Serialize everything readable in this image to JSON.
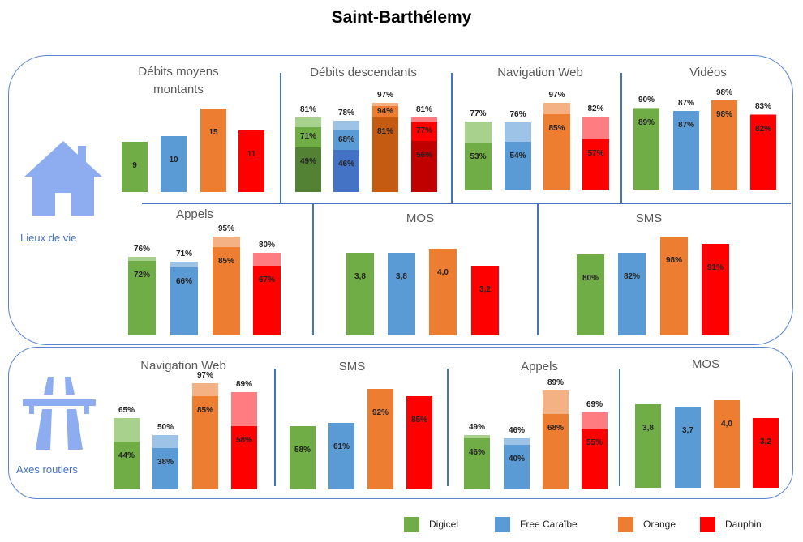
{
  "title": "Saint-Barthélemy",
  "groups": {
    "top": "Lieux de vie",
    "bottom": "Axes routiers"
  },
  "icons": {
    "top": "house-icon",
    "bottom": "highway-icon"
  },
  "legend": [
    {
      "label": "Digicel",
      "color": "#70AD47"
    },
    {
      "label": "Free Caraïbe",
      "color": "#5B9BD5"
    },
    {
      "label": "Orange",
      "color": "#ED7D31"
    },
    {
      "label": "Dauphin",
      "color": "#FF0000"
    }
  ],
  "palette": {
    "Digicel": {
      "light": "#A9D18E",
      "main": "#70AD47",
      "dark": "#548235"
    },
    "Free Caraïbe": {
      "light": "#9DC3E6",
      "main": "#5B9BD5",
      "dark": "#4472C4"
    },
    "Orange": {
      "light": "#F4B183",
      "main": "#ED7D31",
      "dark": "#C55A11"
    },
    "Dauphin": {
      "light": "#FF7C80",
      "main": "#FF0000",
      "dark": "#C00000"
    }
  },
  "chart_data": [
    {
      "type": "bar",
      "group": "Lieux de vie",
      "title": "Débits moyens\nmontants",
      "categories": [
        "Digicel",
        "Free Caraïbe",
        "Orange",
        "Dauphin"
      ],
      "series": [
        {
          "values": [
            9,
            10,
            15,
            11
          ]
        }
      ]
    },
    {
      "type": "bar",
      "group": "Lieux de vie",
      "title": "Débits descendants",
      "unit": "%",
      "categories": [
        "Digicel",
        "Free Caraïbe",
        "Orange",
        "Dauphin"
      ],
      "series": [
        {
          "values": [
            81,
            78,
            97,
            81
          ]
        },
        {
          "values": [
            71,
            68,
            94,
            77
          ]
        },
        {
          "values": [
            49,
            46,
            81,
            56
          ]
        }
      ]
    },
    {
      "type": "bar",
      "group": "Lieux de vie",
      "title": "Navigation Web",
      "unit": "%",
      "categories": [
        "Digicel",
        "Free Caraïbe",
        "Orange",
        "Dauphin"
      ],
      "series": [
        {
          "values": [
            77,
            76,
            97,
            82
          ]
        },
        {
          "values": [
            53,
            54,
            85,
            57
          ]
        }
      ]
    },
    {
      "type": "bar",
      "group": "Lieux de vie",
      "title": "Vidéos",
      "unit": "%",
      "categories": [
        "Digicel",
        "Free Caraïbe",
        "Orange",
        "Dauphin"
      ],
      "series": [
        {
          "values": [
            90,
            87,
            98,
            83
          ]
        },
        {
          "values": [
            89,
            87,
            98,
            82
          ]
        }
      ]
    },
    {
      "type": "bar",
      "group": "Lieux de vie",
      "title": "Appels",
      "unit": "%",
      "categories": [
        "Digicel",
        "Free Caraïbe",
        "Orange",
        "Dauphin"
      ],
      "series": [
        {
          "values": [
            76,
            71,
            95,
            80
          ]
        },
        {
          "values": [
            72,
            66,
            85,
            67
          ]
        }
      ]
    },
    {
      "type": "bar",
      "group": "Lieux de vie",
      "title": "MOS",
      "decimal": true,
      "categories": [
        "Digicel",
        "Free Caraïbe",
        "Orange",
        "Dauphin"
      ],
      "series": [
        {
          "values": [
            3.8,
            3.8,
            4.0,
            3.2
          ]
        }
      ]
    },
    {
      "type": "bar",
      "group": "Lieux de vie",
      "title": "SMS",
      "unit": "%",
      "categories": [
        "Digicel",
        "Free Caraïbe",
        "Orange",
        "Dauphin"
      ],
      "series": [
        {
          "values": [
            80,
            82,
            98,
            91
          ]
        }
      ]
    },
    {
      "type": "bar",
      "group": "Axes routiers",
      "title": "Navigation Web",
      "unit": "%",
      "categories": [
        "Digicel",
        "Free Caraïbe",
        "Orange",
        "Dauphin"
      ],
      "series": [
        {
          "values": [
            65,
            50,
            97,
            89
          ]
        },
        {
          "values": [
            44,
            38,
            85,
            58
          ]
        }
      ]
    },
    {
      "type": "bar",
      "group": "Axes routiers",
      "title": "SMS",
      "unit": "%",
      "categories": [
        "Digicel",
        "Free Caraïbe",
        "Orange",
        "Dauphin"
      ],
      "series": [
        {
          "values": [
            58,
            61,
            92,
            85
          ]
        }
      ]
    },
    {
      "type": "bar",
      "group": "Axes routiers",
      "title": "Appels",
      "unit": "%",
      "categories": [
        "Digicel",
        "Free Caraïbe",
        "Orange",
        "Dauphin"
      ],
      "series": [
        {
          "values": [
            49,
            46,
            89,
            69
          ]
        },
        {
          "values": [
            46,
            40,
            68,
            55
          ]
        }
      ]
    },
    {
      "type": "bar",
      "group": "Axes routiers",
      "title": "MOS",
      "decimal": true,
      "categories": [
        "Digicel",
        "Free Caraïbe",
        "Orange",
        "Dauphin"
      ],
      "series": [
        {
          "values": [
            3.8,
            3.7,
            4.0,
            3.2
          ]
        }
      ]
    }
  ]
}
